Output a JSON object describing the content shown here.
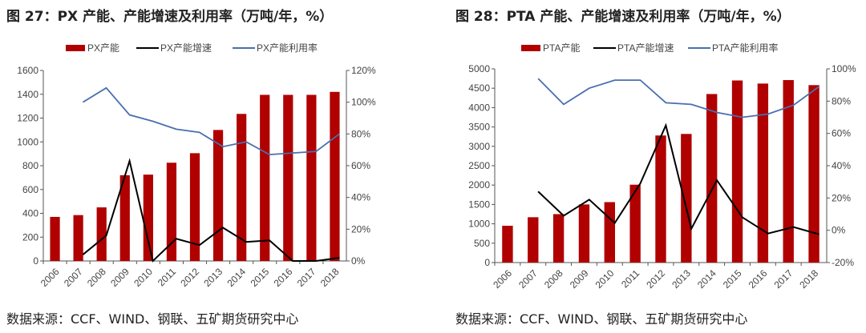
{
  "colors": {
    "bar": "#b00000",
    "growth": "#000000",
    "util": "#4a6fae"
  },
  "chart_data": [
    {
      "type": "bar+line",
      "title": "图 27：PX 产能、产能增速及利用率（万吨/年，%）",
      "source": "数据来源：CCF、WIND、钢联、五矿期货研究中心",
      "categories": [
        "2006",
        "2007",
        "2008",
        "2009",
        "2010",
        "2011",
        "2012",
        "2013",
        "2014",
        "2015",
        "2016",
        "2017",
        "2018"
      ],
      "ylim": [
        0,
        1600
      ],
      "yticks": [
        "0",
        "200",
        "400",
        "600",
        "800",
        "1000",
        "1200",
        "1400",
        "1600"
      ],
      "y2lim": [
        0,
        120
      ],
      "y2ticks": [
        "0%",
        "20%",
        "40%",
        "60%",
        "80%",
        "100%",
        "120%"
      ],
      "legend_position": "top",
      "series": [
        {
          "name": "PX产能",
          "type": "bar",
          "axis": "left",
          "values": [
            370,
            385,
            450,
            720,
            725,
            825,
            905,
            1100,
            1235,
            1395,
            1395,
            1395,
            1420
          ]
        },
        {
          "name": "PX产能增速",
          "type": "line",
          "axis": "right",
          "values": [
            null,
            4,
            16,
            63,
            0,
            14,
            10,
            21,
            12,
            13,
            0,
            0,
            2
          ]
        },
        {
          "name": "PX产能利用率",
          "type": "line",
          "axis": "right",
          "values": [
            null,
            100,
            109,
            92,
            88,
            83,
            81,
            72,
            75,
            67,
            68,
            69,
            80
          ]
        }
      ]
    },
    {
      "type": "bar+line",
      "title": "图 28：PTA 产能、产能增速及利用率（万吨/年，%）",
      "source": "数据来源：CCF、WIND、钢联、五矿期货研究中心",
      "categories": [
        "2006",
        "2007",
        "2008",
        "2009",
        "2010",
        "2011",
        "2012",
        "2013",
        "2014",
        "2015",
        "2016",
        "2017",
        "2018"
      ],
      "ylim": [
        0,
        5000
      ],
      "yticks": [
        "0",
        "500",
        "1000",
        "1500",
        "2000",
        "2500",
        "3000",
        "3500",
        "4000",
        "4500",
        "5000"
      ],
      "y2lim": [
        -20,
        100
      ],
      "y2ticks": [
        "-20%",
        "0%",
        "20%",
        "40%",
        "60%",
        "80%",
        "100%"
      ],
      "legend_position": "top",
      "series": [
        {
          "name": "PTA产能",
          "type": "bar",
          "axis": "left",
          "values": [
            950,
            1170,
            1250,
            1500,
            1560,
            2010,
            3280,
            3320,
            4350,
            4700,
            4620,
            4710,
            4580
          ]
        },
        {
          "name": "PTA产能增速",
          "type": "line",
          "axis": "right",
          "values": [
            null,
            24,
            9,
            19,
            4.5,
            29,
            65,
            1,
            31,
            8,
            -2,
            2,
            -2.5
          ]
        },
        {
          "name": "PTA产能利用率",
          "type": "line",
          "axis": "right",
          "values": [
            null,
            94,
            78,
            88,
            93,
            93,
            79,
            78,
            73,
            70,
            72,
            77.5,
            89
          ]
        }
      ]
    }
  ]
}
